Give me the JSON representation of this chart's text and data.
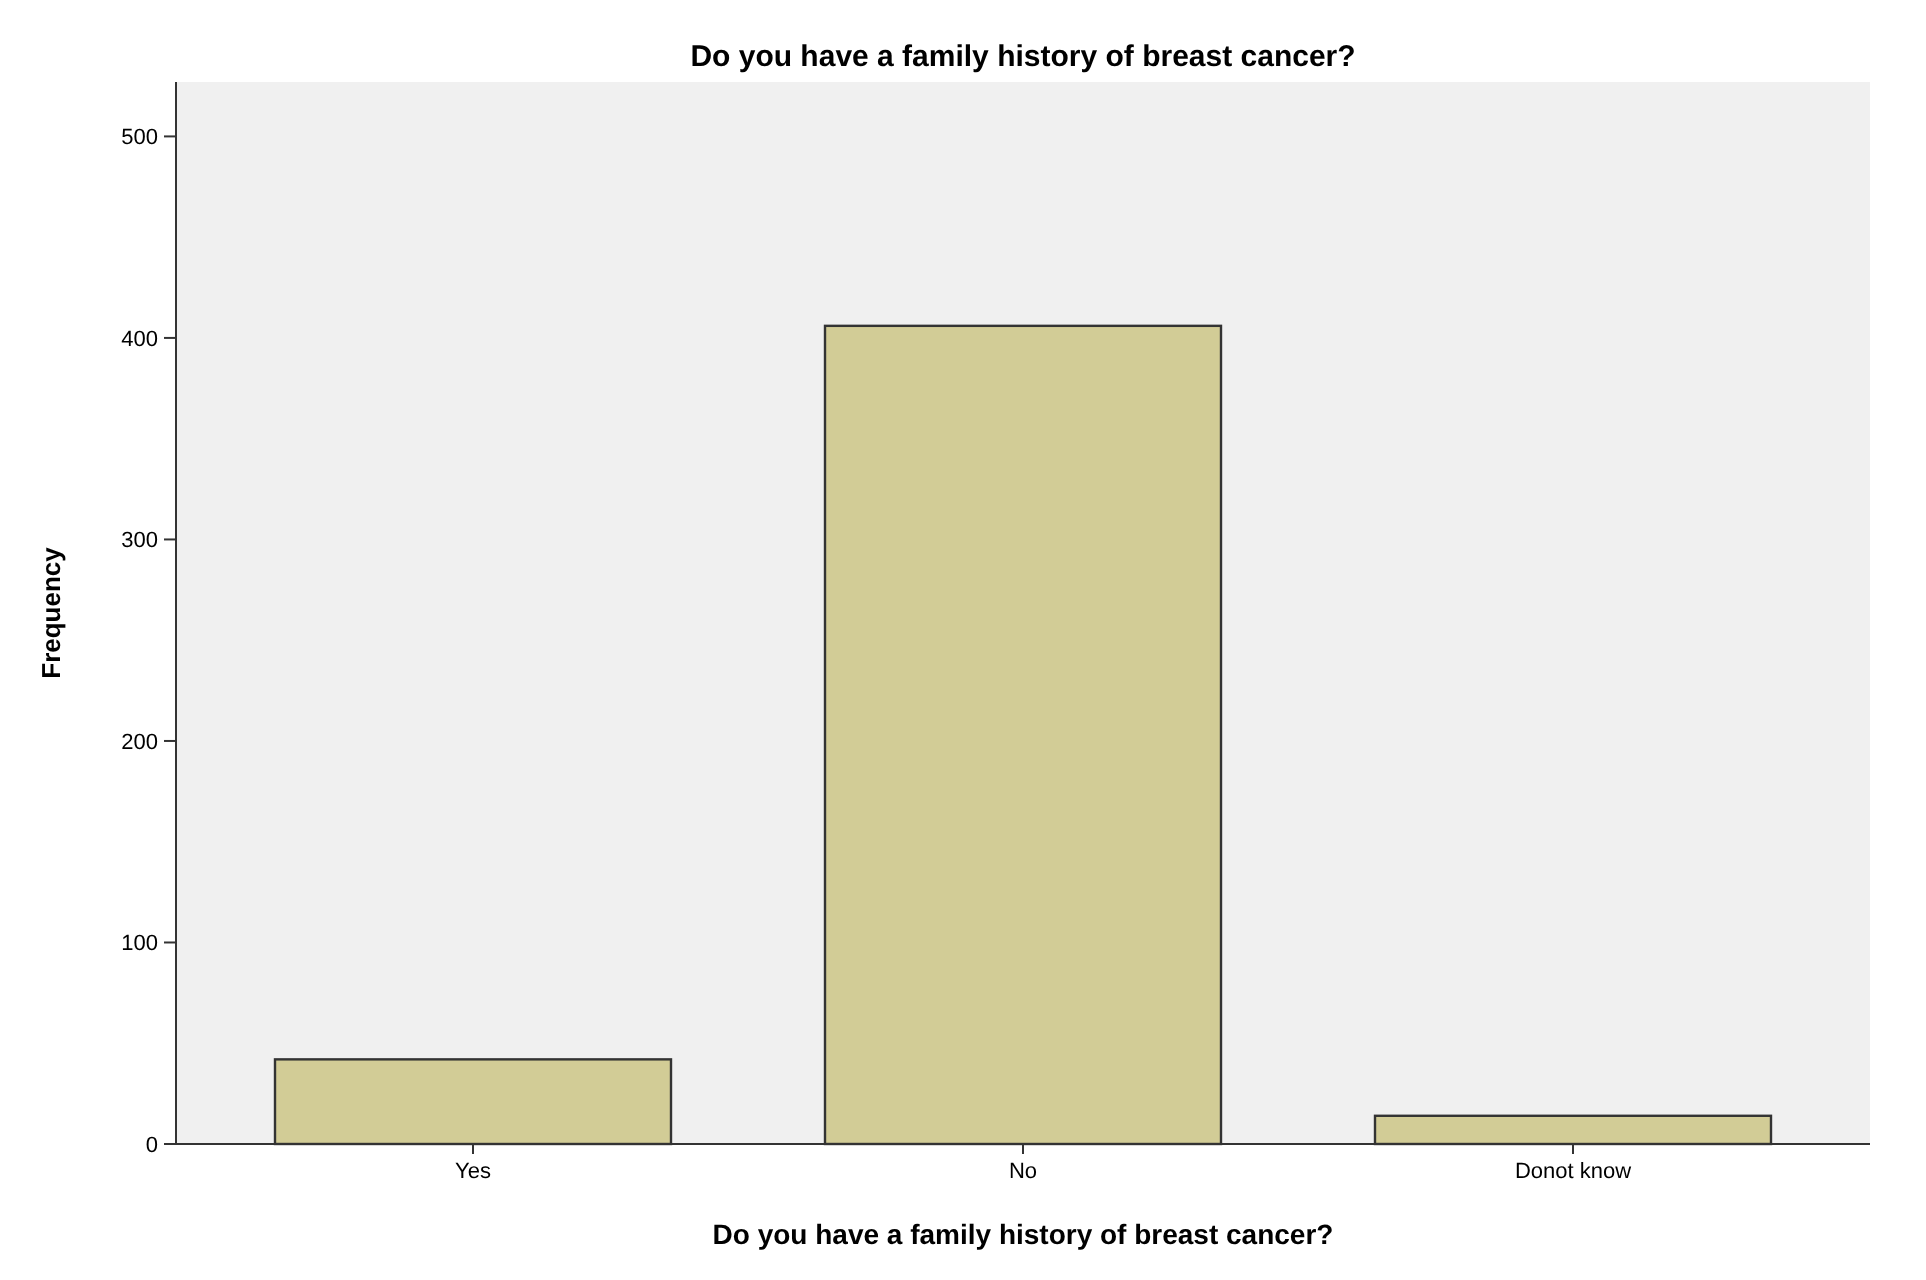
{
  "chart_data": {
    "type": "bar",
    "title": "Do you have a family history of breast cancer?",
    "xlabel": "Do you have a family history of breast cancer?",
    "ylabel": "Frequency",
    "categories": [
      "Yes",
      "No",
      "Donot know"
    ],
    "values": [
      42,
      406,
      14
    ],
    "color": "#d2cc96",
    "ylim": [
      0,
      527
    ],
    "yticks": [
      0,
      100,
      200,
      300,
      400,
      500
    ],
    "grid": false
  }
}
